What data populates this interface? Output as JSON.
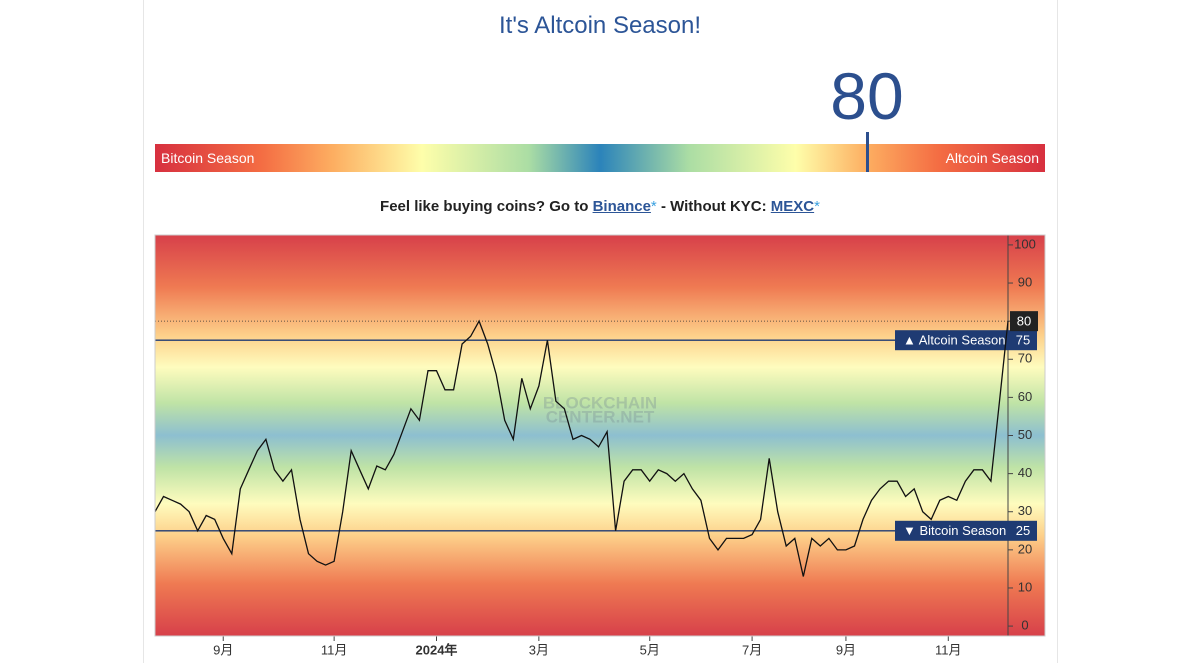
{
  "title": "It's Altcoin Season!",
  "gauge": {
    "value": 80,
    "min": 0,
    "max": 100,
    "left_label": "Bitcoin Season",
    "right_label": "Altcoin Season"
  },
  "promo": {
    "text1": "Feel like buying coins? Go to",
    "link1": "Binance",
    "star": "*",
    "text2": "- Without KYC:",
    "link2": "MEXC"
  },
  "chart_data": {
    "type": "line",
    "color": "#111111",
    "watermark": [
      "BLOCKCHAIN",
      "CENTER.NET"
    ],
    "categories": [
      null,
      null,
      null,
      null,
      null,
      null,
      null,
      null,
      "9月",
      null,
      null,
      null,
      null,
      null,
      null,
      null,
      null,
      null,
      null,
      null,
      null,
      "11月",
      null,
      null,
      null,
      null,
      null,
      null,
      null,
      null,
      null,
      null,
      null,
      "2024年",
      null,
      null,
      null,
      null,
      null,
      null,
      null,
      null,
      null,
      null,
      null,
      "3月",
      null,
      null,
      null,
      null,
      null,
      null,
      null,
      null,
      null,
      null,
      null,
      null,
      "5月",
      null,
      null,
      null,
      null,
      null,
      null,
      null,
      null,
      null,
      null,
      null,
      "7月",
      null,
      null,
      null,
      null,
      null,
      null,
      null,
      null,
      null,
      null,
      "9月",
      null,
      null,
      null,
      null,
      null,
      null,
      null,
      null,
      null,
      null,
      null,
      "11月",
      null,
      null,
      null,
      null,
      null,
      null,
      null
    ],
    "values": [
      30,
      34,
      33,
      32,
      30,
      25,
      29,
      28,
      23,
      19,
      36,
      41,
      46,
      49,
      41,
      38,
      41,
      28,
      19,
      17,
      16,
      17,
      30,
      46,
      41,
      36,
      42,
      41,
      45,
      51,
      57,
      54,
      67,
      67,
      62,
      62,
      74,
      76,
      80,
      74,
      66,
      54,
      49,
      65,
      57,
      63,
      75,
      59,
      57,
      49,
      50,
      49,
      47,
      51,
      25,
      38,
      41,
      41,
      38,
      41,
      40,
      38,
      40,
      36,
      33,
      23,
      20,
      23,
      23,
      23,
      24,
      28,
      44,
      30,
      21,
      23,
      13,
      23,
      21,
      23,
      20,
      20,
      21,
      28,
      33,
      36,
      38,
      38,
      34,
      36,
      30,
      28,
      33,
      34,
      33,
      38,
      41,
      41,
      38,
      59,
      80
    ],
    "ylim": [
      -2.6,
      102.6
    ],
    "yticks": [
      0,
      10,
      20,
      30,
      40,
      50,
      60,
      70,
      80,
      90,
      100
    ],
    "reference_lines": [
      {
        "value": 75,
        "label": "▲ Altcoin Season"
      },
      {
        "value": 25,
        "label": "▼ Bitcoin Season"
      }
    ]
  }
}
